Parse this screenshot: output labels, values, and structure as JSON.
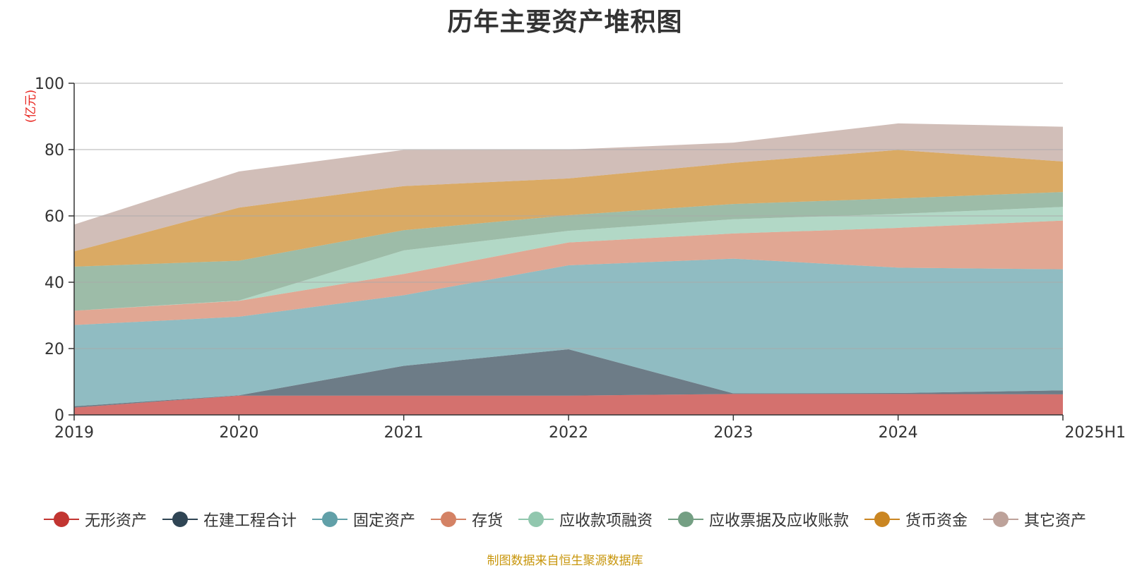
{
  "chart_data": {
    "type": "area",
    "title": "历年主要资产堆积图",
    "unit_label": "(亿元)",
    "categories": [
      "2019",
      "2020",
      "2021",
      "2022",
      "2023",
      "2024",
      "2025H1"
    ],
    "ylim": [
      0,
      100
    ],
    "yticks": [
      0,
      20,
      40,
      60,
      80,
      100
    ],
    "grid": true,
    "stacked": true,
    "legend_position": "bottom",
    "series": [
      {
        "name": "无形资产",
        "color": "#c23531",
        "values": [
          2.2,
          5.8,
          5.8,
          5.8,
          6.3,
          6.3,
          6.2
        ]
      },
      {
        "name": "在建工程合计",
        "color": "#2f4554",
        "values": [
          0.4,
          0.1,
          9.0,
          14.0,
          0.2,
          0.3,
          1.2
        ]
      },
      {
        "name": "固定资产",
        "color": "#61a0a8",
        "values": [
          24.5,
          23.7,
          21.3,
          25.3,
          40.6,
          37.8,
          36.5
        ]
      },
      {
        "name": "存货",
        "color": "#d48265",
        "values": [
          4.3,
          4.8,
          6.4,
          6.9,
          7.6,
          12.0,
          14.7
        ]
      },
      {
        "name": "应收款项融资",
        "color": "#91c7ae",
        "values": [
          0.0,
          0.1,
          7.1,
          3.5,
          4.3,
          4.2,
          4.1
        ]
      },
      {
        "name": "应收票据及应收账款",
        "color": "#749f83",
        "values": [
          13.3,
          12.0,
          6.1,
          4.7,
          4.6,
          4.7,
          4.5
        ]
      },
      {
        "name": "货币资金",
        "color": "#ca8622",
        "values": [
          4.6,
          16.0,
          13.3,
          11.1,
          12.4,
          14.6,
          9.2
        ]
      },
      {
        "name": "其它资产",
        "color": "#bda29a",
        "values": [
          8.1,
          10.9,
          10.9,
          8.7,
          6.1,
          8.0,
          10.5
        ]
      }
    ]
  },
  "footer": "制图数据来自恒生聚源数据库"
}
